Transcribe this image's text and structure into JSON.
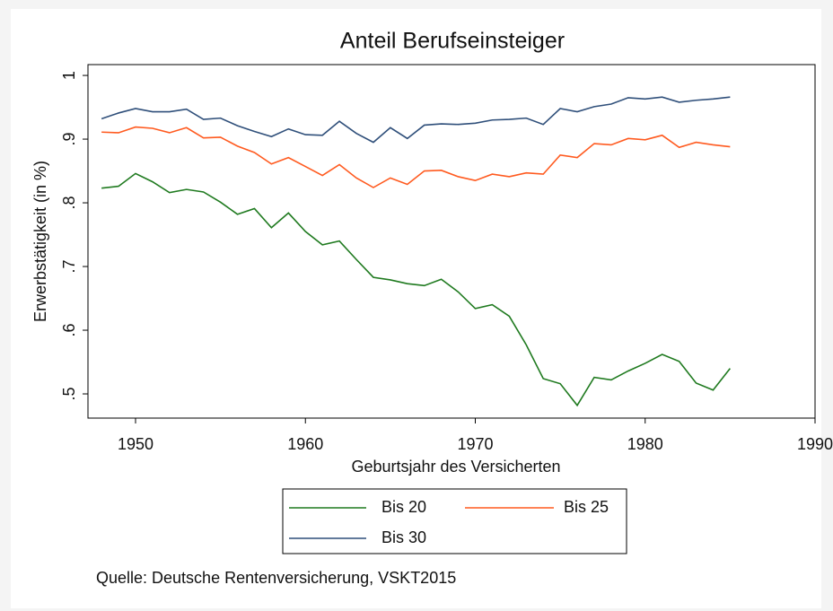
{
  "chart_data": {
    "type": "line",
    "title": "Anteil Berufseinsteiger",
    "x_label": "Geburtsjahr des Versicherten",
    "y_label": "Erwerbstätigkeit (in %)",
    "source": "Quelle: Deutsche Rentenversicherung, VSKT2015",
    "x": [
      1948,
      1949,
      1950,
      1951,
      1952,
      1953,
      1954,
      1955,
      1956,
      1957,
      1958,
      1959,
      1960,
      1961,
      1962,
      1963,
      1964,
      1965,
      1966,
      1967,
      1968,
      1969,
      1970,
      1971,
      1972,
      1973,
      1974,
      1975,
      1976,
      1977,
      1978,
      1979,
      1980,
      1981,
      1982,
      1983,
      1984,
      1985
    ],
    "series": [
      {
        "name": "Bis 20",
        "color": "#1f7a1f",
        "values": [
          0.823,
          0.826,
          0.846,
          0.833,
          0.816,
          0.821,
          0.817,
          0.801,
          0.782,
          0.791,
          0.761,
          0.784,
          0.755,
          0.734,
          0.74,
          0.711,
          0.683,
          0.679,
          0.673,
          0.67,
          0.68,
          0.66,
          0.634,
          0.64,
          0.622,
          0.577,
          0.524,
          0.516,
          0.482,
          0.526,
          0.522,
          0.536,
          0.548,
          0.562,
          0.551,
          0.517,
          0.506,
          0.54
        ]
      },
      {
        "name": "Bis 25",
        "color": "#ff5a1f",
        "values": [
          0.911,
          0.91,
          0.919,
          0.917,
          0.91,
          0.918,
          0.902,
          0.903,
          0.889,
          0.879,
          0.861,
          0.871,
          0.857,
          0.843,
          0.86,
          0.839,
          0.824,
          0.839,
          0.829,
          0.85,
          0.851,
          0.841,
          0.835,
          0.845,
          0.841,
          0.847,
          0.845,
          0.875,
          0.871,
          0.893,
          0.891,
          0.901,
          0.899,
          0.906,
          0.887,
          0.895,
          0.891,
          0.888
        ]
      },
      {
        "name": "Bis 30",
        "color": "#2f4f7a",
        "values": [
          0.932,
          0.941,
          0.948,
          0.943,
          0.943,
          0.947,
          0.931,
          0.933,
          0.921,
          0.912,
          0.904,
          0.916,
          0.907,
          0.906,
          0.928,
          0.909,
          0.895,
          0.918,
          0.901,
          0.922,
          0.924,
          0.923,
          0.925,
          0.93,
          0.931,
          0.933,
          0.923,
          0.948,
          0.943,
          0.951,
          0.955,
          0.965,
          0.963,
          0.966,
          0.958,
          0.961,
          0.963,
          0.966
        ]
      }
    ],
    "xlim": [
      1947.2,
      1990
    ],
    "xticks": [
      1950,
      1960,
      1970,
      1980,
      1990
    ],
    "ylim": [
      0.462,
      1.017
    ],
    "yticks": [
      {
        "value": 0.5,
        "label": ".5"
      },
      {
        "value": 0.6,
        "label": ".6"
      },
      {
        "value": 0.7,
        "label": ".7"
      },
      {
        "value": 0.8,
        "label": ".8"
      },
      {
        "value": 0.9,
        "label": ".9"
      },
      1
    ],
    "grid": false,
    "legend": "bottom"
  }
}
